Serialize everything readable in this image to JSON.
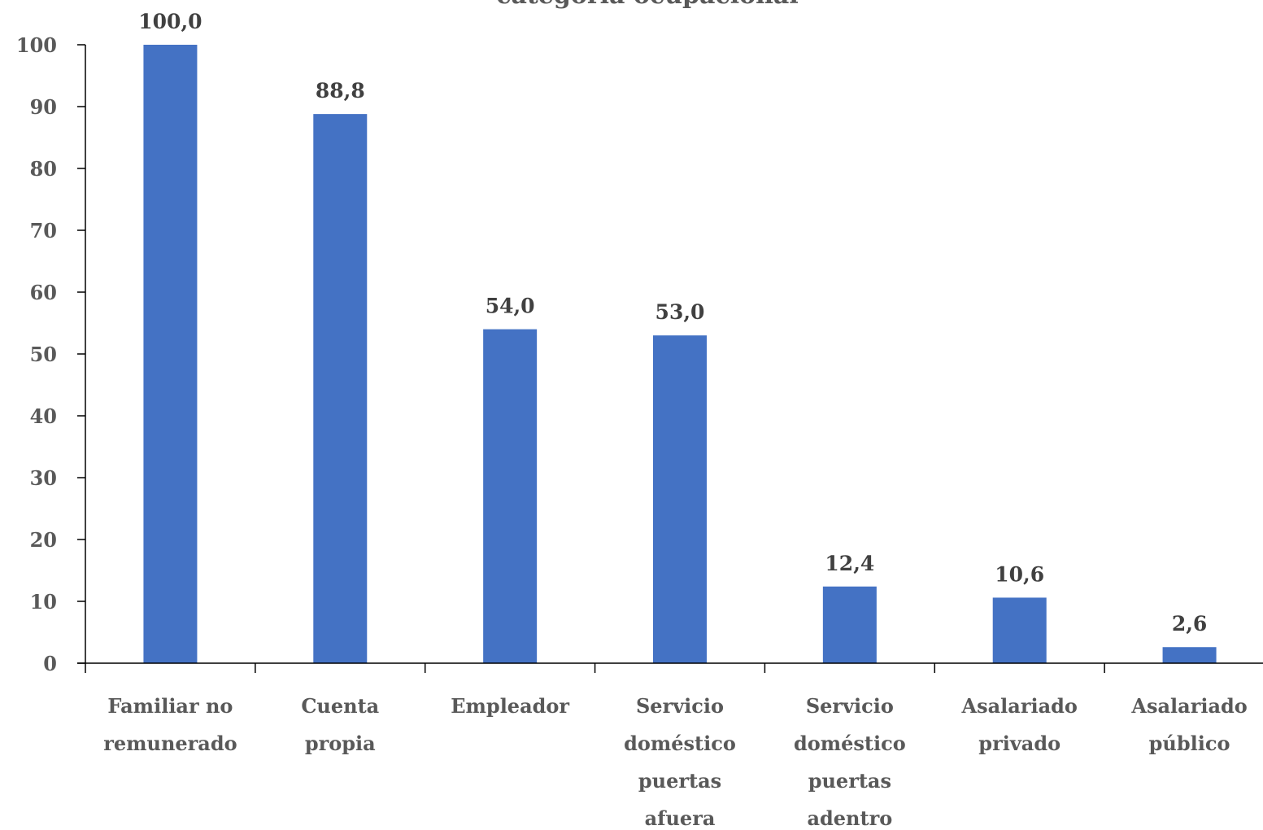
{
  "chart_data": {
    "type": "bar",
    "title": "categoría ocupacional",
    "categories": [
      [
        "Familiar no",
        "remunerado"
      ],
      [
        "Cuenta",
        "propia"
      ],
      [
        "Empleador"
      ],
      [
        "Servicio",
        "doméstico",
        "puertas",
        "afuera"
      ],
      [
        "Servicio",
        "doméstico",
        "puertas",
        "adentro"
      ],
      [
        "Asalariado",
        "privado"
      ],
      [
        "Asalariado",
        "público"
      ]
    ],
    "values": [
      100.0,
      88.8,
      54.0,
      53.0,
      12.4,
      10.6,
      2.6
    ],
    "data_labels": [
      "100,0",
      "88,8",
      "54,0",
      "53,0",
      "12,4",
      "10,6",
      "2,6"
    ],
    "ylim": [
      0,
      100
    ],
    "yticks": [
      0,
      10,
      20,
      30,
      40,
      50,
      60,
      70,
      80,
      90,
      100
    ],
    "grid": false,
    "bar_color": "#4472C4"
  }
}
